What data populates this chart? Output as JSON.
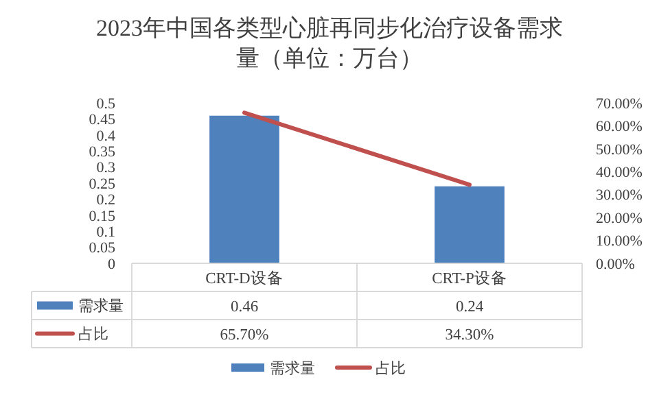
{
  "chart_data": {
    "type": "bar",
    "title": "2023年中国各类型心脏再同步化治疗设备需求量（单位：万台）",
    "categories": [
      "CRT-D设备",
      "CRT-P设备"
    ],
    "series": [
      {
        "name": "需求量",
        "color": "#4f81bd",
        "values": [
          0.46,
          0.24
        ],
        "value_labels": [
          "0.46",
          "0.24"
        ]
      },
      {
        "name": "占比",
        "type": "line",
        "axis": "y2",
        "color": "#c0504d",
        "values": [
          65.7,
          34.3
        ],
        "value_labels": [
          "65.70%",
          "34.30%"
        ]
      }
    ],
    "ylim": [
      0,
      0.5
    ],
    "yticks": [
      0,
      0.05,
      0.1,
      0.15,
      0.2,
      0.25,
      0.3,
      0.35,
      0.4,
      0.45,
      0.5
    ],
    "y2lim": [
      0,
      70
    ],
    "y2ticks": [
      {
        "value": 0,
        "label": "0.00%"
      },
      {
        "value": 10,
        "label": "10.00%"
      },
      {
        "value": 20,
        "label": "20.00%"
      },
      {
        "value": 30,
        "label": "30.00%"
      },
      {
        "value": 40,
        "label": "40.00%"
      },
      {
        "value": 50,
        "label": "50.00%"
      },
      {
        "value": 60,
        "label": "60.00%"
      },
      {
        "value": 70,
        "label": "70.00%"
      }
    ],
    "grid": false,
    "legend": "bottom",
    "line_style": "solid",
    "marker": "none"
  }
}
